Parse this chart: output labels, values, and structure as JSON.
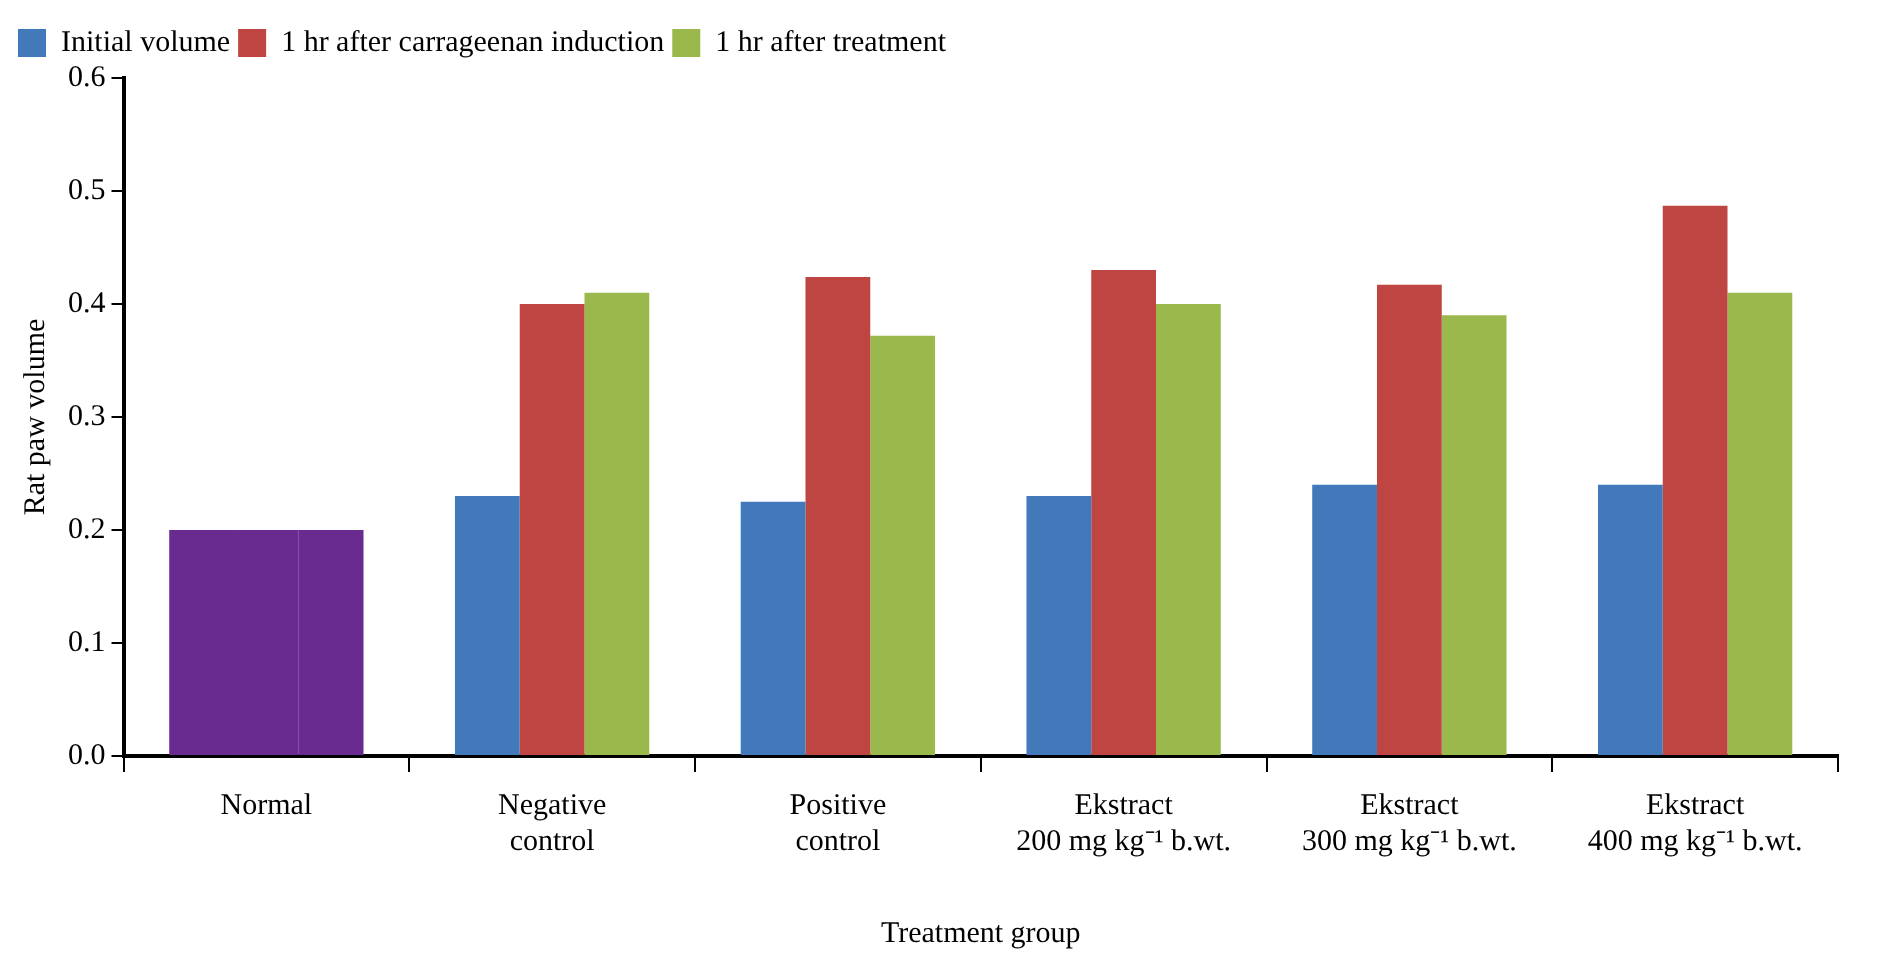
{
  "chart_data": {
    "type": "bar",
    "xlabel": "Treatment group",
    "ylabel": "Rat paw volume",
    "categories": [
      "Normal",
      "Negative\ncontrol",
      "Positive\ncontrol",
      "Ekstract\n200 mg kg⁻¹ b.wt.",
      "Ekstract\n300 mg kg⁻¹ b.wt.",
      "Ekstract\n400 mg kg⁻¹ b.wt."
    ],
    "series": [
      {
        "name": "Initial volume",
        "color": "#4279bb",
        "colors": [
          "#692b8f",
          "#4279bb",
          "#4279bb",
          "#4279bb",
          "#4279bb",
          "#4279bb"
        ],
        "values": [
          0.2,
          0.23,
          0.225,
          0.23,
          0.24,
          0.24
        ]
      },
      {
        "name": "1 hr after carrageenan induction",
        "color": "#bf4542",
        "colors": [
          "#692b8f",
          "#bf4542",
          "#bf4542",
          "#bf4542",
          "#bf4542",
          "#bf4542"
        ],
        "values": [
          0.2,
          0.4,
          0.424,
          0.43,
          0.417,
          0.487
        ]
      },
      {
        "name": "1 hr after treatment",
        "color": "#9ab84c",
        "colors": [
          "#692b8f",
          "#9ab84c",
          "#9ab84c",
          "#9ab84c",
          "#9ab84c",
          "#9ab84c"
        ],
        "values": [
          0.2,
          0.41,
          0.372,
          0.4,
          0.39,
          0.41
        ]
      }
    ],
    "ylim": [
      0,
      0.6
    ],
    "yticks": [
      {
        "value": 0,
        "label": "0.0"
      },
      {
        "value": 0.1,
        "label": "0.1"
      },
      {
        "value": 0.2,
        "label": "0.2"
      },
      {
        "value": 0.3,
        "label": "0.3"
      },
      {
        "value": 0.4,
        "label": "0.4"
      },
      {
        "value": 0.5,
        "label": "0.5"
      },
      {
        "value": 0.6,
        "label": "0.6"
      }
    ],
    "grid": false,
    "legend": "top left"
  }
}
